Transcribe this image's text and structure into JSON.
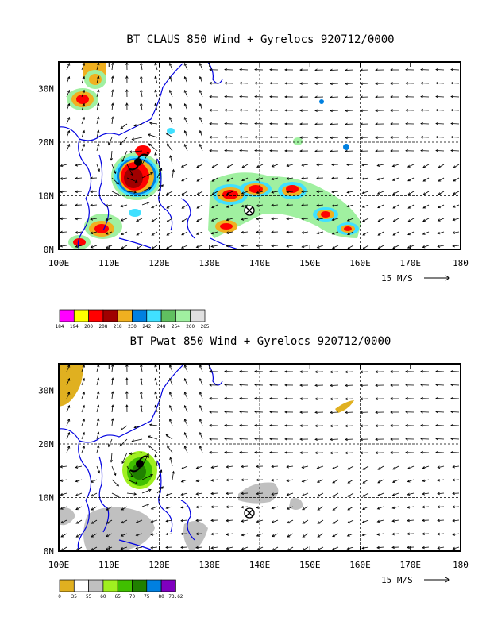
{
  "panels": [
    {
      "id": "claus",
      "title": "BT CLAUS 850 Wind + Gyrelocs 920712/0000",
      "x_tick_labels": [
        "100E",
        "110E",
        "120E",
        "130E",
        "140E",
        "150E",
        "160E",
        "170E",
        "180"
      ],
      "y_tick_labels": [
        "0N",
        "10N",
        "20N",
        "30N"
      ],
      "vector_scale_label": "15 M/S",
      "colorbar_values": [
        "184",
        "194",
        "200",
        "208",
        "218",
        "230",
        "242",
        "248",
        "254",
        "260",
        "265"
      ],
      "colorbar_colors": [
        "#ff00ff",
        "#ffff00",
        "#ff0000",
        "#a00000",
        "#f0b020",
        "#0080e0",
        "#40e0ff",
        "#60c060",
        "#a0f0a0",
        "#e0e0e0"
      ]
    },
    {
      "id": "pwat",
      "title": "BT Pwat 850 Wind + Gyrelocs 920712/0000",
      "x_tick_labels": [
        "100E",
        "110E",
        "120E",
        "130E",
        "140E",
        "150E",
        "160E",
        "170E",
        "180"
      ],
      "y_tick_labels": [
        "0N",
        "10N",
        "20N",
        "30N"
      ],
      "vector_scale_label": "15 M/S",
      "colorbar_values": [
        "0",
        "35",
        "55",
        "60",
        "65",
        "70",
        "75",
        "80",
        "73.62"
      ],
      "colorbar_colors": [
        "#e0b020",
        "#ffffff",
        "#c0c0c0",
        "#a0f020",
        "#40c000",
        "#208000",
        "#0080e0",
        "#8000c0"
      ]
    }
  ]
}
